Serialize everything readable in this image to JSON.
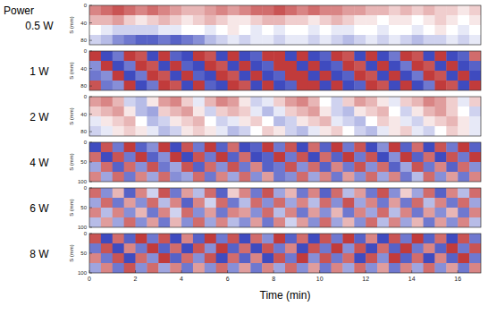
{
  "row_header": "Power",
  "chart_data": [
    {
      "type": "heatmap",
      "title": "0.5 W",
      "ylabel": "S (mm)",
      "tick_labels": "y",
      "xlim": [
        0,
        17
      ],
      "ylim": [
        0,
        90
      ],
      "yticks": [
        0,
        40,
        80
      ],
      "clim": [
        -10,
        10
      ],
      "x_edges": [
        0,
        0.5,
        1,
        1.5,
        2,
        2.5,
        3,
        3.5,
        4,
        4.5,
        5,
        5.5,
        6,
        6.5,
        7,
        7.5,
        8,
        8.5,
        9,
        9.5,
        10,
        10.5,
        11,
        11.5,
        12,
        12.5,
        13,
        13.5,
        14,
        14.5,
        15,
        15.5,
        16,
        16.5,
        17
      ],
      "y_edges": [
        0,
        22.5,
        45,
        67.5,
        90
      ],
      "cells": [
        [
          5,
          6,
          7,
          6,
          5,
          6,
          5,
          4,
          3,
          3,
          4,
          5,
          4,
          5,
          6,
          6,
          7,
          6,
          5,
          6,
          5,
          5,
          4,
          4,
          3,
          3,
          2,
          3,
          2,
          3,
          2,
          2,
          1,
          2
        ],
        [
          3,
          3,
          4,
          2,
          1,
          2,
          3,
          2,
          1,
          2,
          3,
          2,
          1,
          1,
          2,
          3,
          3,
          2,
          2,
          1,
          2,
          3,
          2,
          1,
          1,
          0,
          1,
          1,
          0,
          1,
          2,
          1,
          0,
          1
        ],
        [
          0,
          -1,
          -2,
          -2,
          -2,
          -2,
          -1,
          -1,
          0,
          0,
          -1,
          0,
          1,
          0,
          -1,
          0,
          -1,
          0,
          0,
          -1,
          0,
          -1,
          -1,
          0,
          0,
          -1,
          0,
          0,
          -1,
          0,
          1,
          0,
          -1,
          0
        ],
        [
          -2,
          -3,
          -5,
          -6,
          -7,
          -7,
          -6,
          -7,
          -6,
          -5,
          -3,
          -2,
          -1,
          -2,
          -1,
          -1,
          -2,
          -1,
          -1,
          -2,
          -1,
          -2,
          -3,
          -2,
          -1,
          -2,
          -1,
          -2,
          -3,
          -2,
          -2,
          -1,
          -2,
          -1
        ]
      ]
    },
    {
      "type": "heatmap",
      "title": "1 W",
      "ylabel": "S (mm)",
      "tick_labels": "y",
      "xlim": [
        0,
        17
      ],
      "ylim": [
        0,
        90
      ],
      "yticks": [
        0,
        40,
        80
      ],
      "clim": [
        -10,
        10
      ],
      "x_edges": [
        0,
        0.5,
        1,
        1.5,
        2,
        2.5,
        3,
        3.5,
        4,
        4.5,
        5,
        5.5,
        6,
        6.5,
        7,
        7.5,
        8,
        8.5,
        9,
        9.5,
        10,
        10.5,
        11,
        11.5,
        12,
        12.5,
        13,
        13.5,
        14,
        14.5,
        15,
        15.5,
        16,
        16.5,
        17
      ],
      "y_edges": [
        0,
        22.5,
        45,
        67.5,
        90
      ],
      "cells": [
        [
          8,
          -8,
          -6,
          8,
          7,
          -8,
          8,
          -7,
          -8,
          8,
          7,
          -8,
          8,
          -8,
          -7,
          8,
          8,
          -8,
          8,
          -8,
          -7,
          8,
          7,
          -8,
          8,
          -8,
          -6,
          8,
          7,
          -8,
          8,
          -8,
          -7,
          6
        ],
        [
          -5,
          8,
          -8,
          -6,
          8,
          7,
          -8,
          8,
          -7,
          -8,
          8,
          7,
          -8,
          8,
          -8,
          -7,
          8,
          8,
          -8,
          8,
          -8,
          -7,
          8,
          7,
          -8,
          8,
          -8,
          -6,
          8,
          7,
          -8,
          8,
          -8,
          -7
        ],
        [
          -6,
          -5,
          8,
          -8,
          -6,
          8,
          7,
          -8,
          8,
          -7,
          -8,
          8,
          7,
          -8,
          8,
          -8,
          -7,
          8,
          8,
          -8,
          8,
          -8,
          -7,
          8,
          7,
          -8,
          8,
          -8,
          -6,
          8,
          7,
          -8,
          8,
          -8
        ],
        [
          7,
          -6,
          -5,
          8,
          -8,
          -6,
          8,
          7,
          -8,
          8,
          -7,
          -8,
          8,
          7,
          -8,
          8,
          -8,
          -7,
          8,
          8,
          -8,
          8,
          -8,
          -7,
          8,
          7,
          -8,
          8,
          -8,
          -6,
          8,
          7,
          -8,
          8
        ]
      ]
    },
    {
      "type": "heatmap",
      "title": "2 W",
      "ylabel": "S (mm)",
      "tick_labels": "y",
      "xlim": [
        0,
        17
      ],
      "ylim": [
        0,
        90
      ],
      "yticks": [
        0,
        40,
        80
      ],
      "clim": [
        -10,
        10
      ],
      "x_edges": [
        0,
        0.5,
        1,
        1.5,
        2,
        2.5,
        3,
        3.5,
        4,
        4.5,
        5,
        5.5,
        6,
        6.5,
        7,
        7.5,
        8,
        8.5,
        9,
        9.5,
        10,
        10.5,
        11,
        11.5,
        12,
        12.5,
        13,
        13.5,
        14,
        14.5,
        15,
        15.5,
        16,
        16.5,
        17
      ],
      "y_edges": [
        0,
        22.5,
        45,
        67.5,
        90
      ],
      "cells": [
        [
          4,
          5,
          3,
          -2,
          -3,
          1,
          4,
          5,
          2,
          -1,
          3,
          5,
          4,
          1,
          -2,
          -1,
          2,
          4,
          5,
          3,
          0,
          -2,
          2,
          4,
          3,
          1,
          -1,
          2,
          3,
          5,
          4,
          2,
          -1,
          2
        ],
        [
          2,
          3,
          4,
          1,
          -3,
          -4,
          2,
          3,
          4,
          1,
          -2,
          2,
          3,
          2,
          -1,
          -3,
          -1,
          2,
          3,
          4,
          1,
          -2,
          -3,
          1,
          2,
          3,
          0,
          -2,
          1,
          3,
          4,
          2,
          0,
          -2
        ],
        [
          -1,
          1,
          2,
          3,
          0,
          -3,
          -2,
          1,
          2,
          3,
          0,
          -2,
          -1,
          1,
          2,
          0,
          -3,
          -2,
          1,
          2,
          3,
          -1,
          -2,
          -3,
          0,
          2,
          1,
          -1,
          -2,
          1,
          2,
          3,
          1,
          -1
        ],
        [
          -2,
          -1,
          1,
          2,
          1,
          -1,
          -3,
          -2,
          1,
          2,
          1,
          -1,
          -3,
          -2,
          0,
          2,
          1,
          -2,
          -3,
          -1,
          1,
          2,
          0,
          -2,
          -3,
          -1,
          1,
          2,
          -1,
          -2,
          0,
          2,
          1,
          -1
        ]
      ]
    },
    {
      "type": "heatmap",
      "title": "4 W",
      "ylabel": "S (mm)",
      "tick_labels": "y",
      "xlim": [
        0,
        17
      ],
      "ylim": [
        0,
        100
      ],
      "yticks": [
        0,
        50,
        100
      ],
      "clim": [
        -10,
        10
      ],
      "x_edges": [
        0,
        0.5,
        1,
        1.5,
        2,
        2.5,
        3,
        3.5,
        4,
        4.5,
        5,
        5.5,
        6,
        6.5,
        7,
        7.5,
        8,
        8.5,
        9,
        9.5,
        10,
        10.5,
        11,
        11.5,
        12,
        12.5,
        13,
        13.5,
        14,
        14.5,
        15,
        15.5,
        16,
        16.5,
        17
      ],
      "y_edges": [
        0,
        25,
        50,
        75,
        100
      ],
      "cells": [
        [
          -8,
          7,
          -6,
          8,
          -7,
          -5,
          8,
          -8,
          7,
          -6,
          8,
          -7,
          6,
          -8,
          -7,
          8,
          -6,
          7,
          -8,
          6,
          -7,
          8,
          -6,
          7,
          -8,
          -5,
          8,
          -7,
          6,
          -8,
          7,
          -6,
          8,
          -7
        ],
        [
          6,
          -8,
          7,
          -6,
          8,
          -7,
          -5,
          8,
          -8,
          7,
          -6,
          8,
          -7,
          6,
          -8,
          -7,
          8,
          -6,
          7,
          -8,
          6,
          -7,
          8,
          -6,
          7,
          -8,
          -5,
          8,
          -7,
          6,
          -8,
          7,
          -6,
          8
        ],
        [
          -4,
          6,
          -7,
          6,
          -5,
          7,
          -6,
          -4,
          7,
          -7,
          6,
          -5,
          7,
          -6,
          5,
          -7,
          -6,
          7,
          -5,
          6,
          -7,
          5,
          -6,
          7,
          -5,
          6,
          -7,
          -4,
          7,
          -6,
          5,
          -7,
          6,
          -5
        ],
        [
          5,
          -4,
          6,
          -6,
          5,
          -4,
          6,
          -5,
          -4,
          6,
          -6,
          5,
          -4,
          6,
          -5,
          4,
          -6,
          -5,
          6,
          -4,
          5,
          -6,
          4,
          -5,
          6,
          -4,
          5,
          -6,
          -3,
          6,
          -5,
          4,
          -6,
          5
        ]
      ]
    },
    {
      "type": "heatmap",
      "title": "6 W",
      "ylabel": "S (mm)",
      "tick_labels": "y",
      "xlim": [
        0,
        17
      ],
      "ylim": [
        0,
        100
      ],
      "yticks": [
        0,
        50,
        100
      ],
      "clim": [
        -10,
        10
      ],
      "x_edges": [
        0,
        0.5,
        1,
        1.5,
        2,
        2.5,
        3,
        3.5,
        4,
        4.5,
        5,
        5.5,
        6,
        6.5,
        7,
        7.5,
        8,
        8.5,
        9,
        9.5,
        10,
        10.5,
        11,
        11.5,
        12,
        12.5,
        13,
        13.5,
        14,
        14.5,
        15,
        15.5,
        16,
        16.5,
        17
      ],
      "y_edges": [
        0,
        25,
        50,
        75,
        100
      ],
      "cells": [
        [
          6,
          -5,
          3,
          -7,
          5,
          -2,
          7,
          -6,
          4,
          -3,
          6,
          -7,
          2,
          5,
          -6,
          7,
          -4,
          3,
          -6,
          5,
          -7,
          6,
          -3,
          4,
          -6,
          7,
          -5,
          2,
          -4,
          6,
          -7,
          5,
          -3,
          6
        ],
        [
          -4,
          6,
          -6,
          4,
          -5,
          6,
          -3,
          5,
          -7,
          5,
          -2,
          6,
          -6,
          -3,
          6,
          -5,
          6,
          -4,
          5,
          -3,
          6,
          -5,
          7,
          -4,
          5,
          -6,
          4,
          -6,
          6,
          -3,
          5,
          -6,
          6,
          -4
        ],
        [
          5,
          -3,
          5,
          -5,
          3,
          -6,
          5,
          -2,
          6,
          -5,
          4,
          -6,
          5,
          4,
          -5,
          6,
          -3,
          5,
          -6,
          4,
          -5,
          3,
          -6,
          5,
          -4,
          6,
          -3,
          5,
          -6,
          4,
          -5,
          3,
          -6,
          5
        ],
        [
          -3,
          4,
          -4,
          6,
          -5,
          4,
          -6,
          3,
          -5,
          6,
          -4,
          5,
          -3,
          -5,
          4,
          -6,
          5,
          -2,
          4,
          -5,
          6,
          -4,
          3,
          -5,
          6,
          -3,
          5,
          -4,
          3,
          -6,
          4,
          -5,
          5,
          -3
        ]
      ]
    },
    {
      "type": "heatmap",
      "title": "8 W",
      "ylabel": "S (mm)",
      "xlabel": "Time (min)",
      "tick_labels": true,
      "xlim": [
        0,
        17
      ],
      "ylim": [
        0,
        100
      ],
      "yticks": [
        0,
        50,
        100
      ],
      "xticks": [
        0,
        2,
        4,
        6,
        8,
        10,
        12,
        14,
        16
      ],
      "clim": [
        -10,
        10
      ],
      "x_edges": [
        0,
        0.5,
        1,
        1.5,
        2,
        2.5,
        3,
        3.5,
        4,
        4.5,
        5,
        5.5,
        6,
        6.5,
        7,
        7.5,
        8,
        8.5,
        9,
        9.5,
        10,
        10.5,
        11,
        11.5,
        12,
        12.5,
        13,
        13.5,
        14,
        14.5,
        15,
        15.5,
        16,
        16.5,
        17
      ],
      "y_edges": [
        0,
        25,
        50,
        75,
        100
      ],
      "cells": [
        [
          7,
          -8,
          6,
          -7,
          8,
          -6,
          7,
          -8,
          5,
          -7,
          8,
          -6,
          7,
          -8,
          6,
          -5,
          8,
          -7,
          6,
          -8,
          7,
          -6,
          8,
          -7,
          5,
          -8,
          7,
          -6,
          8,
          -7,
          6,
          -8,
          7,
          -6
        ],
        [
          -6,
          7,
          -8,
          5,
          -6,
          8,
          -7,
          6,
          -8,
          7,
          -5,
          8,
          -7,
          6,
          -8,
          7,
          -6,
          5,
          -8,
          7,
          -6,
          8,
          -5,
          7,
          -8,
          6,
          -7,
          8,
          -6,
          5,
          -7,
          8,
          -6,
          7
        ],
        [
          5,
          -6,
          7,
          -8,
          6,
          -5,
          8,
          -7,
          6,
          -5,
          7,
          -8,
          6,
          -7,
          5,
          -8,
          7,
          -6,
          8,
          -5,
          7,
          -6,
          6,
          -8,
          7,
          -5,
          8,
          -7,
          6,
          -8,
          5,
          -7,
          8,
          -6
        ],
        [
          -4,
          5,
          -6,
          7,
          -5,
          6,
          -4,
          5,
          -6,
          4,
          -5,
          6,
          -5,
          4,
          -6,
          5,
          -4,
          6,
          -5,
          4,
          -6,
          5,
          -4,
          6,
          -5,
          4,
          -6,
          5,
          -4,
          6,
          -5,
          4,
          -6,
          5
        ]
      ]
    }
  ]
}
